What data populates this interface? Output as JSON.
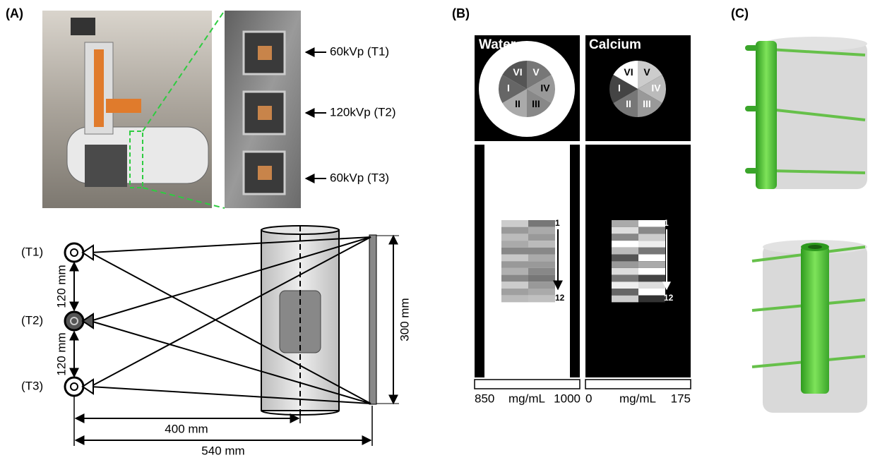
{
  "panels": {
    "a": "(A)",
    "b": "(B)",
    "c": "(C)"
  },
  "photo_labels": [
    "60kVp (T1)",
    "120kVp (T2)",
    "60kVp (T3)"
  ],
  "sources": [
    "(T1)",
    "(T2)",
    "(T3)"
  ],
  "dimensions": {
    "spacing_1": "120 mm",
    "spacing_2": "120 mm",
    "height": "300 mm",
    "isocenter": "400 mm",
    "detector": "540 mm"
  },
  "material_maps": [
    {
      "title": "Water",
      "sectors": [
        "VI",
        "V",
        "IV",
        "III",
        "II",
        "I"
      ],
      "index_start": "1",
      "index_end": "12",
      "scale_min": "850",
      "scale_unit": "mg/mL",
      "scale_max": "1000"
    },
    {
      "title": "Calcium",
      "sectors": [
        "VI",
        "V",
        "IV",
        "III",
        "II",
        "I"
      ],
      "index_start": "1",
      "index_end": "12",
      "scale_min": "0",
      "scale_unit": "mg/mL",
      "scale_max": "175"
    }
  ]
}
